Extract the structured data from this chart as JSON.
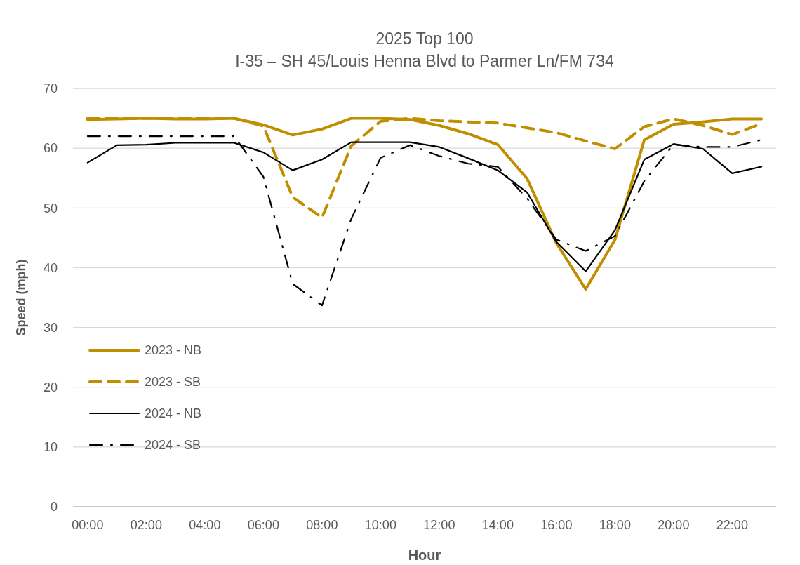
{
  "chart_data": {
    "type": "line",
    "title": "2025 Top 100",
    "subtitle": "I-35 – SH 45/Louis Henna Blvd to Parmer Ln/FM 734",
    "xlabel": "Hour",
    "ylabel": "Speed (mph)",
    "categories": [
      "00:00",
      null,
      "02:00",
      null,
      "04:00",
      null,
      "06:00",
      null,
      "08:00",
      null,
      "10:00",
      null,
      "12:00",
      null,
      "14:00",
      null,
      "16:00",
      null,
      "18:00",
      null,
      "20:00",
      null,
      "22:00",
      null
    ],
    "ylim": [
      0,
      70
    ],
    "yticks": [
      0,
      10,
      20,
      30,
      40,
      50,
      60,
      70
    ],
    "grid": "y",
    "legend": "bottom left",
    "marker": "none",
    "series": [
      {
        "name": "2023 - NB",
        "color": "#bf8f00",
        "line_style": "solid",
        "values": [
          64.8,
          64.9,
          65,
          64.9,
          64.9,
          65,
          63.9,
          62.2,
          63.2,
          65,
          65,
          64.8,
          63.8,
          62.4,
          60.6,
          54.9,
          44.1,
          36.4,
          44.7,
          61.4,
          64,
          64.4,
          64.9,
          64.9
        ]
      },
      {
        "name": "2023 - SB",
        "color": "#bf8f00",
        "line_style": "dashed",
        "values": [
          65,
          65,
          65,
          65,
          65,
          65,
          63.7,
          51.8,
          48.4,
          60.4,
          64.5,
          65,
          64.6,
          64.4,
          64.2,
          63.4,
          62.6,
          61.2,
          59.9,
          63.6,
          64.9,
          63.8,
          62.3,
          64.1
        ]
      },
      {
        "name": "2024 - NB",
        "color": "#000000",
        "line_style": "solid",
        "values": [
          57.6,
          60.5,
          60.6,
          60.9,
          60.9,
          60.9,
          59.3,
          56.3,
          58.1,
          61,
          61,
          61,
          60.2,
          58.3,
          56.3,
          52.6,
          44.3,
          39.4,
          46.3,
          58.1,
          60.7,
          59.9,
          55.8,
          56.9
        ]
      },
      {
        "name": "2024 - SB",
        "color": "#000000",
        "line_style": "dotted",
        "values": [
          62,
          62,
          62,
          62,
          62,
          62,
          55.2,
          37.3,
          33.7,
          48.2,
          58.4,
          60.5,
          58.7,
          57.4,
          56.9,
          51.6,
          44.7,
          42.8,
          45.3,
          54.5,
          60.6,
          60.2,
          60.2,
          61.4
        ]
      }
    ]
  }
}
